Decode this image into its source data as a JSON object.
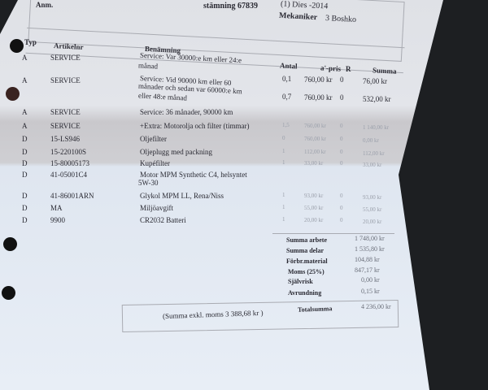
{
  "header": {
    "anm_label": "Anm.",
    "order_label": "stämning 67839",
    "date_label": "(1) Dies -2014",
    "mechanic_label": "Mekaniker",
    "mechanic_value": "3 Boshko"
  },
  "columns": {
    "typ": "Typ",
    "artikelnr": "Artikelnr",
    "benamning": "Benämning",
    "antal": "Antal",
    "apris": "a'-pris",
    "r": "R",
    "summa": "Summa"
  },
  "rows": [
    {
      "typ": "A",
      "art": "SERVICE",
      "ben": "Service: Var 30000:e km eller 24:e",
      "ben2": "månad",
      "antal": "0,1",
      "apris": "760,00 kr",
      "r": "0",
      "summa": "76,00 kr"
    },
    {
      "typ": "A",
      "art": "SERVICE",
      "ben": "Service: Vid 90000 km eller 60",
      "ben2": "månader och sedan var 60000:e km",
      "ben3": "eller 48:e månad",
      "antal": "0,7",
      "apris": "760,00 kr",
      "r": "0",
      "summa": "532,00 kr"
    },
    {
      "typ": "A",
      "art": "SERVICE",
      "ben": "Service: 36 månader, 90000 km"
    },
    {
      "typ": "A",
      "art": "SERVICE",
      "ben": "+Extra: Motorolja och filter (timmar)",
      "antal": "1,5",
      "apris": "760,00 kr",
      "r": "0",
      "summa": "1 140,00 kr"
    },
    {
      "typ": "D",
      "art": "15-LS946",
      "ben": "Oljefilter",
      "antal": "0",
      "apris": "760,00 kr",
      "r": "0",
      "summa": "0,00 kr"
    },
    {
      "typ": "D",
      "art": "15-220100S",
      "ben": "Oljeplugg med packning",
      "antal": "1",
      "apris": "112,00 kr",
      "r": "0",
      "summa": "112,00 kr"
    },
    {
      "typ": "D",
      "art": "15-80005173",
      "ben": "Kupéfilter",
      "antal": "1",
      "apris": "33,00 kr",
      "r": "0",
      "summa": "33,00 kr"
    },
    {
      "typ": "D",
      "art": "41-05001C4",
      "ben": "Motor MPM Synthetic C4, helsyntet",
      "ben2": "5W-30"
    },
    {
      "typ": "D",
      "art": "41-86001ARN",
      "ben": "Glykol MPM LL, Rena/Niss",
      "antal": "1",
      "apris": "93,00 kr",
      "r": "0",
      "summa": "93,00 kr"
    },
    {
      "typ": "D",
      "art": "MA",
      "ben": "Miljöavgift",
      "antal": "1",
      "apris": "55,00 kr",
      "r": "0",
      "summa": "55,00 kr"
    },
    {
      "typ": "D",
      "art": "9900",
      "ben": "CR2032 Batteri",
      "antal": "1",
      "apris": "20,00 kr",
      "r": "0",
      "summa": "20,00 kr"
    }
  ],
  "totals": [
    {
      "label": "Summa arbete",
      "value": "1 748,00 kr"
    },
    {
      "label": "Summa delar",
      "value": "1 535,80 kr"
    },
    {
      "label": "Förbr.material",
      "value": "104,88 kr"
    },
    {
      "label": "Moms  (25%)",
      "value": "847,17 kr"
    },
    {
      "label": "Självrisk",
      "value": "0,00 kr"
    },
    {
      "label": "Avrundning",
      "value": "0,15 kr"
    }
  ],
  "grand": {
    "excl": "(Summa exkl. moms 3 388,68 kr )",
    "label": "Totalsumma",
    "value": "4 236,00 kr"
  }
}
